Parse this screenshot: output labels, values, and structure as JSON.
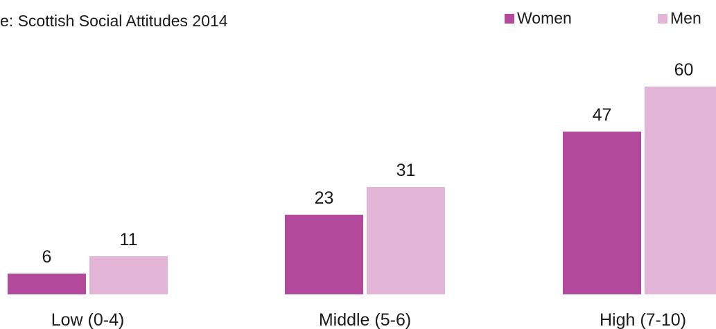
{
  "source_text": "e: Scottish Social Attitudes 2014",
  "chart_data": {
    "type": "bar",
    "categories": [
      "Low (0-4)",
      "Middle (5-6)",
      "High (7-10)"
    ],
    "series": [
      {
        "name": "Women",
        "values": [
          6,
          23,
          47
        ],
        "color": "#b3499a"
      },
      {
        "name": "Men",
        "values": [
          11,
          31,
          60
        ],
        "color": "#e2b5d6"
      }
    ],
    "ylim": [
      0,
      65
    ],
    "legend_position": "top-right",
    "grid": false
  }
}
